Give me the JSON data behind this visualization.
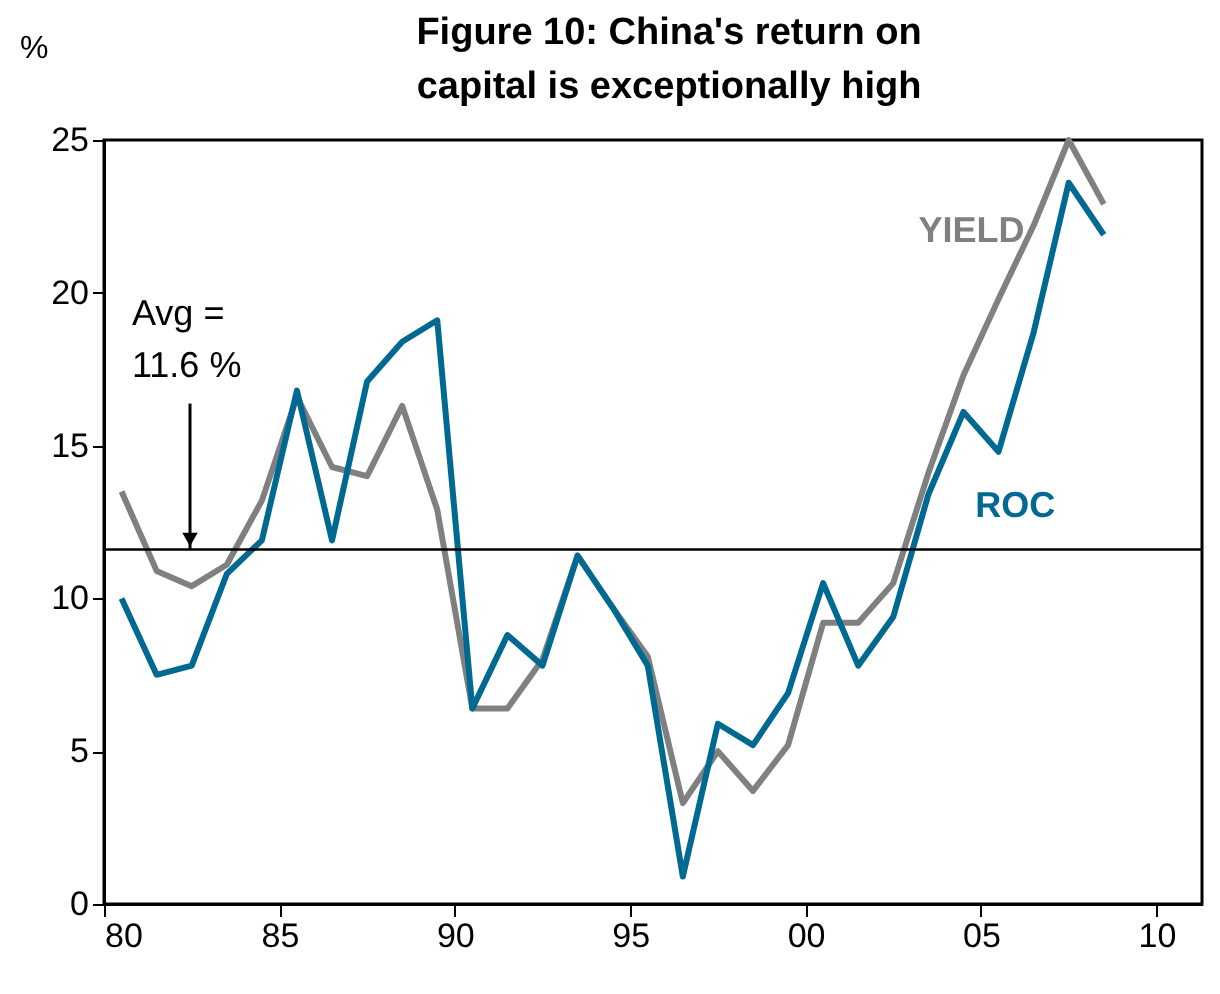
{
  "chart_data": {
    "type": "line",
    "title": "Figure 10: China's return on capital is exceptionally high",
    "ylabel": "%",
    "x": [
      1980.5,
      1981.5,
      1982.5,
      1983.5,
      1984.5,
      1985.5,
      1986.5,
      1987.5,
      1988.5,
      1989.5,
      1990.5,
      1991.5,
      1992.5,
      1993.5,
      1994.5,
      1995.5,
      1996.5,
      1997.5,
      1998.5,
      1999.5,
      2000.5,
      2001.5,
      2002.5,
      2003.5,
      2004.5,
      2005.5,
      2006.5,
      2007.5,
      2008.5
    ],
    "series": [
      {
        "name": "YIELD",
        "color": "#808080",
        "values": [
          13.5,
          10.9,
          10.4,
          11.1,
          13.2,
          16.6,
          14.3,
          14.0,
          16.3,
          12.9,
          6.4,
          6.4,
          8.0,
          11.4,
          9.7,
          8.1,
          3.3,
          5.0,
          3.7,
          5.2,
          9.2,
          9.2,
          10.5,
          14.1,
          17.3,
          19.8,
          22.2,
          25.0,
          22.9
        ]
      },
      {
        "name": "ROC",
        "color": "#006991",
        "values": [
          10.0,
          7.5,
          7.8,
          10.8,
          11.9,
          16.8,
          11.9,
          17.1,
          18.4,
          19.1,
          6.4,
          8.8,
          7.8,
          11.4,
          9.7,
          7.8,
          0.9,
          5.9,
          5.2,
          6.9,
          10.5,
          7.8,
          9.4,
          13.4,
          16.1,
          14.8,
          18.7,
          23.6,
          21.9
        ]
      }
    ],
    "xlim": [
      1980,
      2011.3
    ],
    "xticks": [
      {
        "value": 1980,
        "label": "80"
      },
      {
        "value": 1985,
        "label": "85"
      },
      {
        "value": 1990,
        "label": "90"
      },
      {
        "value": 1995,
        "label": "95"
      },
      {
        "value": 2000,
        "label": "00"
      },
      {
        "value": 2005,
        "label": "05"
      },
      {
        "value": 2010,
        "label": "10"
      }
    ],
    "ylim": [
      0,
      25
    ],
    "yticks": [
      0,
      5,
      10,
      15,
      20,
      25
    ],
    "ref_lines": [
      {
        "axis": "y",
        "value": 11.6,
        "label": "Avg = 11.6 %",
        "color": "#000000"
      }
    ],
    "grid": false
  }
}
